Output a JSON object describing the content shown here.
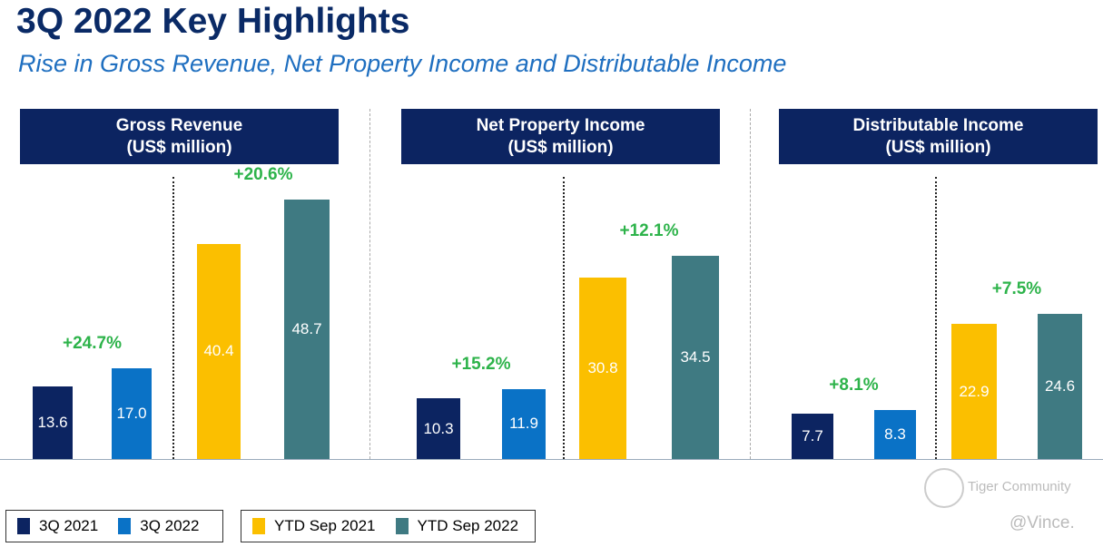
{
  "title": "3Q 2022 Key Highlights",
  "subtitle": "Rise in Gross Revenue, Net Property Income and Distributable Income",
  "chart_data": [
    {
      "type": "bar",
      "title": "Gross Revenue",
      "unit": "(US$ million)",
      "categories": [
        "3Q 2021",
        "3Q 2022",
        "YTD Sep 2021",
        "YTD Sep 2022"
      ],
      "values": [
        13.6,
        17.0,
        40.4,
        48.7
      ],
      "labels": [
        "13.6",
        "17.0",
        "40.4",
        "48.7"
      ],
      "changes": [
        "+24.7%",
        "+20.6%"
      ]
    },
    {
      "type": "bar",
      "title": "Net Property Income",
      "unit": "(US$ million)",
      "categories": [
        "3Q 2021",
        "3Q 2022",
        "YTD Sep 2021",
        "YTD Sep 2022"
      ],
      "values": [
        10.3,
        11.9,
        30.8,
        34.5
      ],
      "labels": [
        "10.3",
        "11.9",
        "30.8",
        "34.5"
      ],
      "changes": [
        "+15.2%",
        "+12.1%"
      ]
    },
    {
      "type": "bar",
      "title": "Distributable Income",
      "unit": "(US$ million)",
      "categories": [
        "3Q 2021",
        "3Q 2022",
        "YTD Sep 2021",
        "YTD Sep 2022"
      ],
      "values": [
        7.7,
        8.3,
        22.9,
        24.6
      ],
      "labels": [
        "7.7",
        "8.3",
        "22.9",
        "24.6"
      ],
      "changes": [
        "+8.1%",
        "+7.5%"
      ]
    }
  ],
  "colors": [
    "#0c2461",
    "#0a72c6",
    "#fbbf00",
    "#3f7a82"
  ],
  "legend": [
    "3Q 2021",
    "3Q 2022",
    "YTD Sep 2021",
    "YTD Sep 2022"
  ],
  "watermark": {
    "brand": "Tiger Community",
    "user": "@Vince."
  }
}
